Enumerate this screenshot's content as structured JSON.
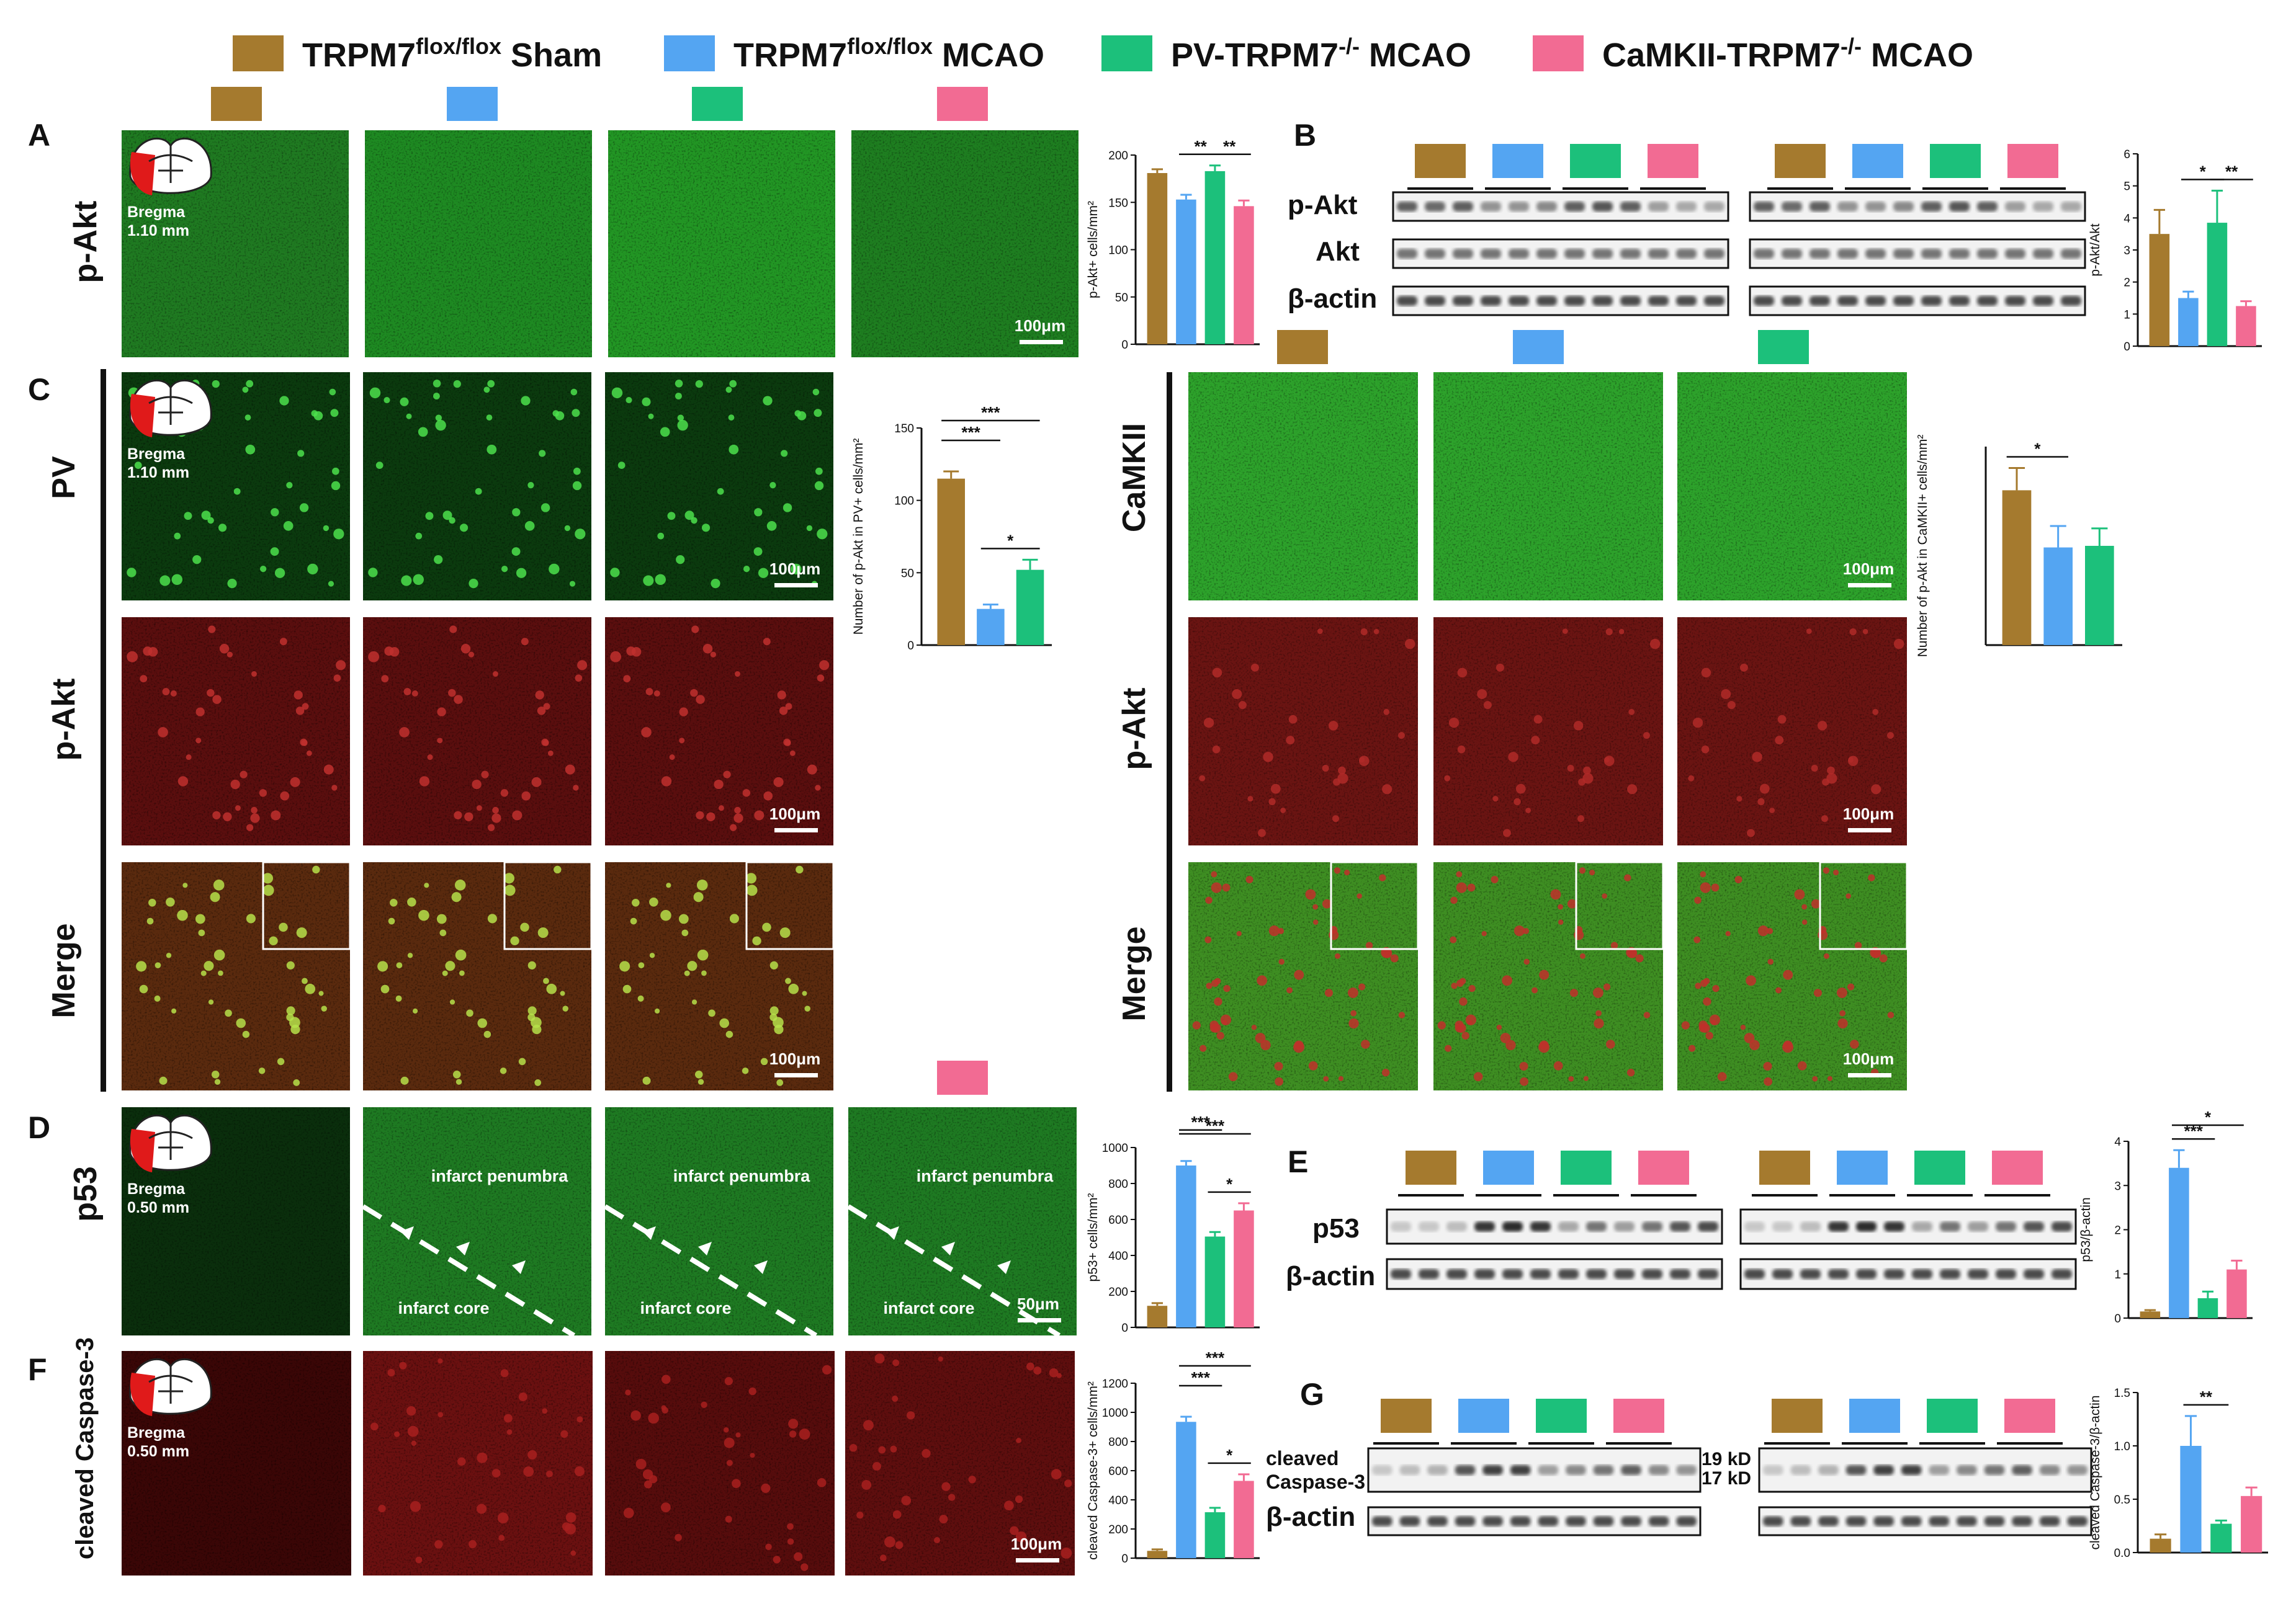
{
  "colors": {
    "sham": "#A57A2E",
    "flox_mcao": "#54A5F2",
    "pv_mcao": "#1CC07B",
    "camk_mcao": "#F26B93",
    "green_channel": "#2EA02E",
    "red_channel": "#8E1A1A"
  },
  "legend": [
    {
      "label": "TRPM7",
      "sup": "flox/flox",
      "suffix": " Sham",
      "color_key": "sham"
    },
    {
      "label": "TRPM7",
      "sup": "flox/flox",
      "suffix": " MCAO",
      "color_key": "flox_mcao"
    },
    {
      "label": "PV-TRPM7",
      "sup": "-/-",
      "suffix": " MCAO",
      "color_key": "pv_mcao"
    },
    {
      "label": "CaMKII-TRPM7",
      "sup": "-/-",
      "suffix": " MCAO",
      "color_key": "camk_mcao"
    }
  ],
  "panels": {
    "A": {
      "letter": "A",
      "row_label": "p-Akt",
      "bregma": "Bregma",
      "bregma_value": "1.10 mm",
      "scale": "100μm"
    },
    "B": {
      "letter": "B",
      "bands": [
        "p-Akt",
        "Akt",
        "β-actin"
      ]
    },
    "C": {
      "letter": "C",
      "rows": [
        "PV",
        "p-Akt",
        "Merge"
      ],
      "bregma": "Bregma",
      "bregma_value": "1.10 mm",
      "scale": "100μm"
    },
    "C2": {
      "rows": [
        "CaMKII",
        "p-Akt",
        "Merge"
      ],
      "scale": "100μm"
    },
    "D": {
      "letter": "D",
      "row_label": "p53",
      "bregma": "Bregma",
      "bregma_value": "0.50 mm",
      "penumbra": "infarct penumbra",
      "core": "infarct core",
      "scale": "50μm"
    },
    "E": {
      "letter": "E",
      "bands": [
        "p53",
        "β-actin"
      ]
    },
    "F": {
      "letter": "F",
      "row_label": "cleaved Caspase-3",
      "bregma": "Bregma",
      "bregma_value": "0.50 mm",
      "scale": "100μm"
    },
    "G": {
      "letter": "G",
      "band1_line1": "cleaved",
      "band1_line2": "Caspase-3",
      "band2": "β-actin",
      "kd_19": "19 kD",
      "kd_17": "17 kD"
    }
  },
  "chart_data": [
    {
      "id": "A",
      "type": "bar",
      "categories": [
        "TRPM7 flox/flox Sham",
        "TRPM7 flox/flox MCAO",
        "PV-TRPM7-/- MCAO",
        "CaMKII-TRPM7-/- MCAO"
      ],
      "values": [
        181,
        153,
        183,
        146
      ],
      "errors": [
        4,
        5,
        6,
        6
      ],
      "ylabel": "p-Akt+ cells/mm²",
      "ylim": [
        0,
        200
      ],
      "yticks": [
        "0",
        "50",
        "100",
        "150",
        "200"
      ],
      "sig": [
        "**",
        "**"
      ]
    },
    {
      "id": "B",
      "type": "bar",
      "categories": [
        "TRPM7 flox/flox Sham",
        "TRPM7 flox/flox MCAO",
        "PV-TRPM7-/- MCAO",
        "CaMKII-TRPM7-/- MCAO"
      ],
      "values": [
        3.5,
        1.5,
        3.85,
        1.25
      ],
      "errors": [
        0.75,
        0.2,
        1.0,
        0.15
      ],
      "ylabel": "p-Akt/Akt",
      "ylim": [
        0,
        6
      ],
      "yticks": [
        "0",
        "1",
        "2",
        "3",
        "4",
        "5",
        "6"
      ],
      "sig": [
        "*",
        "**"
      ]
    },
    {
      "id": "C_PV",
      "type": "bar",
      "categories": [
        "TRPM7 flox/flox Sham",
        "TRPM7 flox/flox MCAO",
        "PV-TRPM7-/- MCAO"
      ],
      "values": [
        115,
        25,
        52
      ],
      "errors": [
        5,
        3,
        7
      ],
      "ylabel": "Number of p-Akt in PV+ cells/mm²",
      "ylim": [
        0,
        150
      ],
      "yticks": [
        "0",
        "50",
        "100",
        "150"
      ],
      "sig": [
        "***",
        "***",
        "*"
      ]
    },
    {
      "id": "C_CaMKII",
      "type": "bar",
      "categories": [
        "TRPM7 flox/flox Sham",
        "TRPM7 flox/flox MCAO",
        "PV-TRPM7-/- MCAO"
      ],
      "values": [
        19.5,
        12.3,
        12.5
      ],
      "errors": [
        2.8,
        2.7,
        2.2
      ],
      "ylabel": "Number of p-Akt in CaMKII+ cells/mm²",
      "ylim": [
        0,
        25
      ],
      "yticks": [],
      "sig": [
        "*"
      ]
    },
    {
      "id": "D",
      "type": "bar",
      "categories": [
        "TRPM7 flox/flox Sham",
        "TRPM7 flox/flox MCAO",
        "PV-TRPM7-/- MCAO",
        "CaMKII-TRPM7-/- MCAO"
      ],
      "values": [
        120,
        900,
        505,
        650
      ],
      "errors": [
        15,
        25,
        25,
        40
      ],
      "ylabel": "p53+ cells/mm²",
      "ylim": [
        0,
        1000
      ],
      "yticks": [
        "0",
        "200",
        "400",
        "600",
        "800",
        "1000"
      ],
      "sig": [
        "***",
        "***",
        "*"
      ]
    },
    {
      "id": "E",
      "type": "bar",
      "categories": [
        "TRPM7 flox/flox Sham",
        "TRPM7 flox/flox MCAO",
        "PV-TRPM7-/- MCAO",
        "CaMKII-TRPM7-/- MCAO"
      ],
      "values": [
        0.15,
        3.4,
        0.45,
        1.1
      ],
      "errors": [
        0.03,
        0.4,
        0.15,
        0.2
      ],
      "ylabel": "p53/β-actin",
      "ylim": [
        0,
        4
      ],
      "yticks": [
        "0",
        "1",
        "2",
        "3",
        "4"
      ],
      "sig": [
        "***",
        "*"
      ]
    },
    {
      "id": "F",
      "type": "bar",
      "categories": [
        "TRPM7 flox/flox Sham",
        "TRPM7 flox/flox MCAO",
        "PV-TRPM7-/- MCAO",
        "CaMKII-TRPM7-/- MCAO"
      ],
      "values": [
        50,
        935,
        315,
        530
      ],
      "errors": [
        10,
        35,
        30,
        45
      ],
      "ylabel": "cleaved Caspase-3+ cells/mm²",
      "ylim": [
        0,
        1200
      ],
      "yticks": [
        "0",
        "200",
        "400",
        "600",
        "800",
        "1000",
        "1200"
      ],
      "sig": [
        "***",
        "***",
        "*"
      ]
    },
    {
      "id": "G",
      "type": "bar",
      "categories": [
        "TRPM7 flox/flox Sham",
        "TRPM7 flox/flox MCAO",
        "PV-TRPM7-/- MCAO",
        "CaMKII-TRPM7-/- MCAO"
      ],
      "values": [
        0.13,
        1.0,
        0.27,
        0.53
      ],
      "errors": [
        0.04,
        0.28,
        0.03,
        0.08
      ],
      "ylabel": "cleaved Caspase-3/β-actin",
      "ylim": [
        0,
        1.5
      ],
      "yticks": [
        "0.0",
        "0.5",
        "1.0",
        "1.5"
      ],
      "sig": [
        "**"
      ]
    }
  ]
}
